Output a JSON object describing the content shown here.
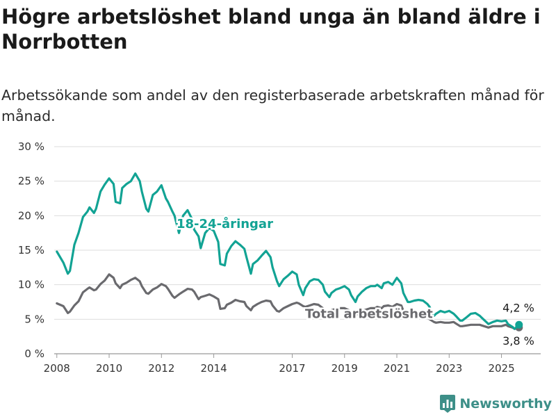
{
  "header": {
    "title": "Högre arbetslöshet bland unga än bland äldre i Norrbotten",
    "subtitle": "Arbetssökande som andel av den registerbaserade arbetskraften månad för månad."
  },
  "logo": {
    "text": "Newsworthy",
    "icon": "bar-chart-icon",
    "color": "#3d8f88"
  },
  "chart_data": {
    "type": "line",
    "xlabel": "",
    "ylabel": "",
    "ylim": [
      0,
      30
    ],
    "y_ticks": [
      "0 %",
      "5 %",
      "10 %",
      "15 %",
      "20 %",
      "25 %",
      "30 %"
    ],
    "y_tick_values": [
      0,
      5,
      10,
      15,
      20,
      25,
      30
    ],
    "x_ticks": [
      "2008",
      "2010",
      "2012",
      "2014",
      "2017",
      "2019",
      "2021",
      "2023",
      "2025"
    ],
    "x_tick_values": [
      2008,
      2010,
      2012,
      2014,
      2017,
      2019,
      2021,
      2023,
      2025
    ],
    "xlim": [
      2007.9,
      2026.5
    ],
    "grid": true,
    "series": [
      {
        "name": "18-24-åringar",
        "color": "#12a394",
        "x": [
          2008.0,
          2008.25,
          2008.42,
          2008.5,
          2008.67,
          2008.83,
          2009.0,
          2009.17,
          2009.25,
          2009.42,
          2009.5,
          2009.67,
          2009.83,
          2010.0,
          2010.17,
          2010.25,
          2010.42,
          2010.5,
          2010.67,
          2010.83,
          2011.0,
          2011.17,
          2011.25,
          2011.42,
          2011.5,
          2011.67,
          2011.83,
          2012.0,
          2012.17,
          2012.25,
          2012.42,
          2012.5,
          2012.67,
          2012.83,
          2013.0,
          2013.17,
          2013.25,
          2013.42,
          2013.5,
          2013.67,
          2013.83,
          2014.0,
          2014.17,
          2014.25,
          2014.42,
          2014.5,
          2014.67,
          2014.83,
          2015.0,
          2015.17,
          2015.25,
          2015.42,
          2015.5,
          2015.67,
          2015.83,
          2016.0,
          2016.17,
          2016.25,
          2016.42,
          2016.5,
          2016.67,
          2016.83,
          2017.0,
          2017.17,
          2017.25,
          2017.42,
          2017.5,
          2017.67,
          2017.83,
          2018.0,
          2018.17,
          2018.25,
          2018.42,
          2018.5,
          2018.67,
          2018.83,
          2019.0,
          2019.17,
          2019.25,
          2019.42,
          2019.5,
          2019.67,
          2019.83,
          2020.0,
          2020.17,
          2020.25,
          2020.42,
          2020.5,
          2020.67,
          2020.83,
          2021.0,
          2021.17,
          2021.25,
          2021.42,
          2021.5,
          2021.67,
          2021.83,
          2022.0,
          2022.17,
          2022.25,
          2022.42,
          2022.5,
          2022.67,
          2022.83,
          2023.0,
          2023.17,
          2023.25,
          2023.42,
          2023.5,
          2023.67,
          2023.83,
          2024.0,
          2024.17,
          2024.25,
          2024.42,
          2024.5,
          2024.67,
          2024.83,
          2025.0,
          2025.17,
          2025.25,
          2025.42,
          2025.5,
          2025.67
        ],
        "values": [
          14.8,
          13.2,
          11.6,
          12.0,
          15.8,
          17.5,
          19.8,
          20.6,
          21.2,
          20.4,
          21.0,
          23.5,
          24.5,
          25.4,
          24.6,
          22.0,
          21.8,
          24.0,
          24.6,
          25.0,
          26.1,
          25.0,
          23.5,
          21.0,
          20.6,
          23.0,
          23.5,
          24.4,
          22.5,
          22.0,
          20.6,
          20.0,
          17.5,
          20.0,
          20.8,
          19.5,
          18.0,
          17.0,
          15.3,
          17.5,
          18.2,
          17.8,
          16.2,
          13.0,
          12.8,
          14.5,
          15.6,
          16.3,
          15.8,
          15.2,
          14.0,
          11.6,
          13.0,
          13.5,
          14.2,
          14.9,
          14.0,
          12.5,
          10.5,
          9.8,
          10.8,
          11.3,
          11.9,
          11.5,
          10.0,
          8.5,
          9.5,
          10.5,
          10.8,
          10.7,
          10.0,
          9.0,
          8.2,
          8.8,
          9.3,
          9.5,
          9.8,
          9.3,
          8.5,
          7.5,
          8.3,
          9.0,
          9.5,
          9.8,
          9.8,
          10.0,
          9.5,
          10.2,
          10.4,
          10.0,
          11.0,
          10.2,
          8.8,
          7.5,
          7.5,
          7.7,
          7.8,
          7.7,
          7.2,
          6.8,
          5.5,
          5.8,
          6.2,
          6.0,
          6.2,
          5.8,
          5.5,
          4.8,
          4.8,
          5.3,
          5.8,
          5.9,
          5.5,
          5.2,
          4.6,
          4.3,
          4.6,
          4.8,
          4.7,
          4.8,
          4.3,
          3.9,
          3.6,
          4.2
        ],
        "end_label": "4,2 %"
      },
      {
        "name": "Total arbetslöshet",
        "color": "#6a6a6e",
        "x": [
          2008.0,
          2008.25,
          2008.42,
          2008.5,
          2008.67,
          2008.83,
          2009.0,
          2009.17,
          2009.25,
          2009.42,
          2009.5,
          2009.67,
          2009.83,
          2010.0,
          2010.17,
          2010.25,
          2010.42,
          2010.5,
          2010.67,
          2010.83,
          2011.0,
          2011.17,
          2011.25,
          2011.42,
          2011.5,
          2011.67,
          2011.83,
          2012.0,
          2012.17,
          2012.25,
          2012.42,
          2012.5,
          2012.67,
          2012.83,
          2013.0,
          2013.17,
          2013.25,
          2013.42,
          2013.5,
          2013.67,
          2013.83,
          2014.0,
          2014.17,
          2014.25,
          2014.42,
          2014.5,
          2014.67,
          2014.83,
          2015.0,
          2015.17,
          2015.25,
          2015.42,
          2015.5,
          2015.67,
          2015.83,
          2016.0,
          2016.17,
          2016.25,
          2016.42,
          2016.5,
          2016.67,
          2016.83,
          2017.0,
          2017.17,
          2017.25,
          2017.42,
          2017.5,
          2017.67,
          2017.83,
          2018.0,
          2018.17,
          2018.25,
          2018.42,
          2018.5,
          2018.67,
          2018.83,
          2019.0,
          2019.17,
          2019.25,
          2019.42,
          2019.5,
          2019.67,
          2019.83,
          2020.0,
          2020.17,
          2020.25,
          2020.42,
          2020.5,
          2020.67,
          2020.83,
          2021.0,
          2021.17,
          2021.25,
          2021.42,
          2021.5,
          2021.67,
          2021.83,
          2022.0,
          2022.17,
          2022.25,
          2022.42,
          2022.5,
          2022.67,
          2022.83,
          2023.0,
          2023.17,
          2023.25,
          2023.42,
          2023.5,
          2023.67,
          2023.83,
          2024.0,
          2024.17,
          2024.25,
          2024.42,
          2024.5,
          2024.67,
          2024.83,
          2025.0,
          2025.17,
          2025.25,
          2025.42,
          2025.5,
          2025.67
        ],
        "values": [
          7.3,
          6.9,
          5.9,
          6.1,
          7.0,
          7.6,
          8.9,
          9.4,
          9.6,
          9.2,
          9.3,
          10.1,
          10.6,
          11.5,
          11.0,
          10.2,
          9.5,
          10.0,
          10.3,
          10.7,
          11.0,
          10.5,
          9.8,
          8.8,
          8.7,
          9.3,
          9.6,
          10.1,
          9.8,
          9.4,
          8.4,
          8.1,
          8.6,
          9.0,
          9.4,
          9.3,
          9.0,
          7.9,
          8.2,
          8.4,
          8.6,
          8.3,
          7.9,
          6.5,
          6.6,
          7.1,
          7.4,
          7.8,
          7.6,
          7.5,
          6.9,
          6.3,
          6.8,
          7.2,
          7.5,
          7.7,
          7.6,
          7.0,
          6.2,
          6.1,
          6.6,
          6.9,
          7.2,
          7.4,
          7.3,
          6.9,
          6.8,
          7.0,
          7.2,
          7.1,
          6.6,
          6.2,
          5.9,
          6.3,
          6.5,
          6.6,
          6.6,
          6.3,
          6.0,
          5.5,
          5.9,
          6.2,
          6.4,
          6.6,
          6.6,
          6.8,
          6.6,
          6.9,
          7.0,
          6.8,
          7.2,
          7.0,
          6.2,
          5.5,
          5.5,
          5.6,
          5.7,
          5.7,
          5.3,
          5.0,
          4.6,
          4.5,
          4.6,
          4.5,
          4.5,
          4.6,
          4.4,
          4.0,
          4.0,
          4.1,
          4.2,
          4.2,
          4.2,
          4.1,
          3.9,
          3.8,
          4.0,
          4.0,
          4.0,
          4.2,
          4.0,
          3.8,
          3.6,
          3.8
        ],
        "end_label": "3,8 %"
      }
    ]
  }
}
